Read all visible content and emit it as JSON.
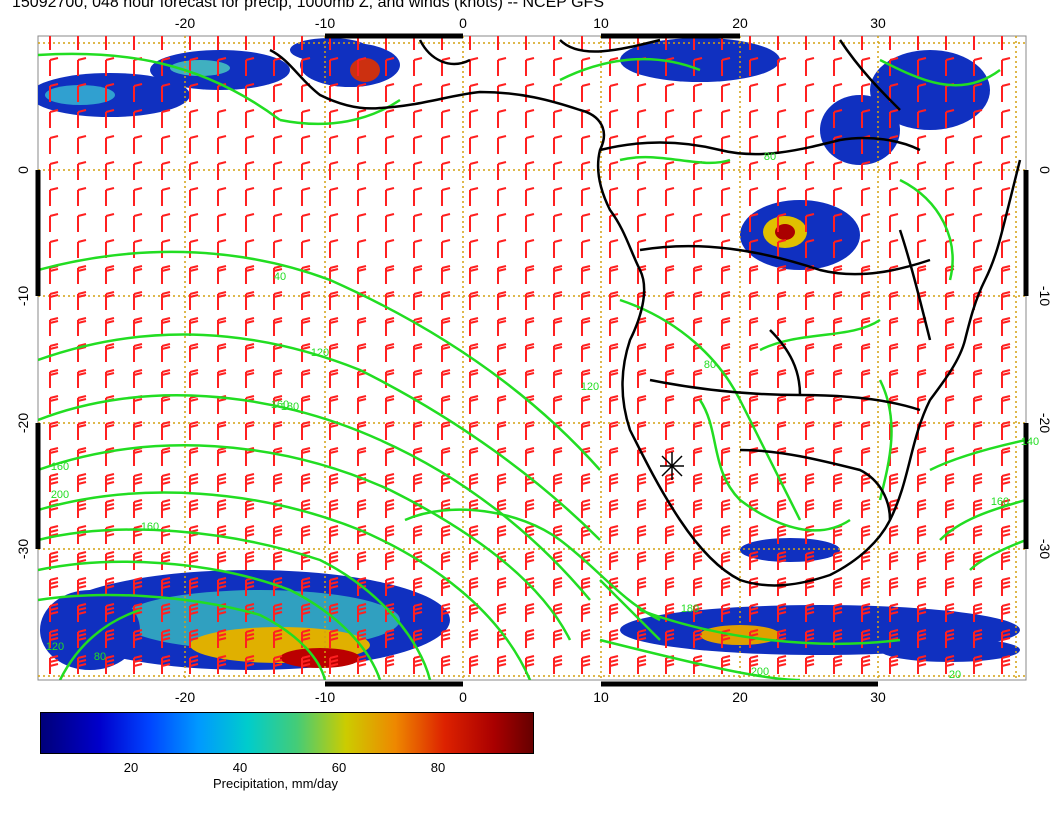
{
  "title": "15092700, 048 hour forecast for precip, 1000mb Z, and winds (knots) -- NCEP GFS",
  "map": {
    "lon_ticks": [
      "-20",
      "-10",
      "0",
      "10",
      "20",
      "30"
    ],
    "lat_ticks": [
      "0",
      "-10",
      "-20",
      "-30"
    ],
    "contour_labels": [
      "120",
      "160",
      "180",
      "120",
      "160",
      "200",
      "80",
      "160",
      "140",
      "160",
      "180",
      "200",
      "40",
      "120",
      "80",
      "20",
      "80"
    ]
  },
  "colors": {
    "contour": "#22dd22",
    "barb": "#ff2020",
    "coast": "#000000",
    "grid": "#d4a010"
  },
  "colorbar": {
    "ticks": [
      "20",
      "40",
      "60",
      "80"
    ],
    "label": "Precipitation, mm/day"
  }
}
